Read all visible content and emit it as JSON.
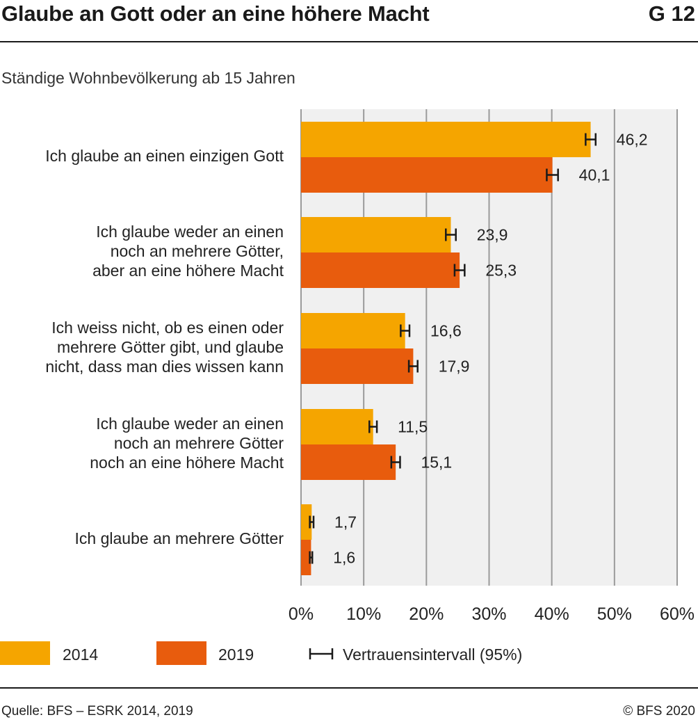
{
  "header": {
    "title": "Glaube an Gott oder an eine höhere Macht",
    "code": "G 12",
    "subtitle": "Ständige Wohnbevölkerung ab 15 Jahren"
  },
  "legend": {
    "series_2014": "2014",
    "series_2019": "2019",
    "ci": "Vertrauensintervall (95%)"
  },
  "footer": {
    "source": "Quelle: BFS – ESRK 2014, 2019",
    "copyright": "© BFS 2020"
  },
  "colors": {
    "series_2014": "#F5A500",
    "series_2019": "#E85C0D",
    "plot_background": "#F0F0F0",
    "grid": "#9A9A9A"
  },
  "chart_data": {
    "type": "bar",
    "orientation": "horizontal",
    "categories": [
      "Ich glaube an einen einzigen Gott",
      "Ich glaube weder an einen noch an mehrere Götter, aber an eine höhere Macht",
      "Ich weiss nicht, ob es einen oder mehrere Götter gibt, und glaube nicht, dass man dies wissen kann",
      "Ich glaube weder an einen noch an mehrere Götter noch an eine höhere Macht",
      "Ich glaube an mehrere Götter"
    ],
    "category_lines": [
      [
        "Ich glaube an einen einzigen Gott"
      ],
      [
        "Ich glaube weder an einen",
        "noch an mehrere Götter,",
        "aber an eine höhere Macht"
      ],
      [
        "Ich weiss nicht, ob es einen oder",
        "mehrere Götter gibt, und glaube",
        "nicht, dass man dies wissen kann"
      ],
      [
        "Ich glaube weder an einen",
        "noch an mehrere Götter",
        "noch an eine höhere Macht"
      ],
      [
        "Ich glaube an mehrere Götter"
      ]
    ],
    "series": [
      {
        "name": "2014",
        "values": [
          46.2,
          23.9,
          16.6,
          11.5,
          1.7
        ],
        "labels": [
          "46,2",
          "23,9",
          "16,6",
          "11,5",
          "1,7"
        ],
        "ci_half_width": [
          0.8,
          0.8,
          0.7,
          0.6,
          0.3
        ]
      },
      {
        "name": "2019",
        "values": [
          40.1,
          25.3,
          17.9,
          15.1,
          1.6
        ],
        "labels": [
          "40,1",
          "25,3",
          "17,9",
          "15,1",
          "1,6"
        ],
        "ci_half_width": [
          0.9,
          0.8,
          0.7,
          0.7,
          0.2
        ]
      }
    ],
    "xlim": [
      0,
      60
    ],
    "xticks": [
      0,
      10,
      20,
      30,
      40,
      50,
      60
    ],
    "xtick_labels": [
      "0%",
      "10%",
      "20%",
      "30%",
      "40%",
      "50%",
      "60%"
    ],
    "grid": true,
    "legend_position": "bottom"
  }
}
